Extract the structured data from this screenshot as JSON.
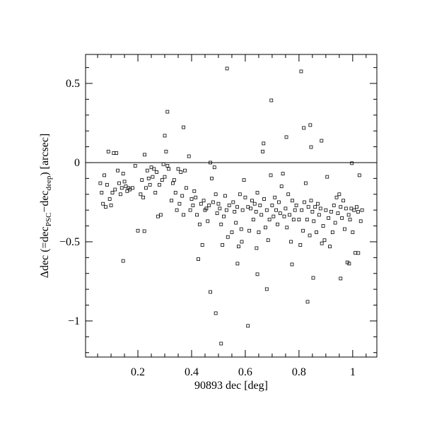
{
  "chart_data": {
    "type": "scatter",
    "xlabel": "90893 dec [deg]",
    "ylabel_parts": [
      "Δdec (=dec",
      "PSC",
      "−dec",
      "deep",
      ") [arcsec]"
    ],
    "xlim": [
      0.005,
      1.09
    ],
    "ylim": [
      -1.228,
      0.683
    ],
    "xticks": [
      0.2,
      0.4,
      0.6,
      0.8,
      1
    ],
    "yticks": [
      {
        "value": -1,
        "label": "−1"
      },
      {
        "value": -0.5,
        "label": "−0.5"
      },
      0,
      0.5
    ],
    "xticks_minor": [
      0.05,
      0.1,
      0.15,
      0.25,
      0.3,
      0.35,
      0.45,
      0.5,
      0.55,
      0.65,
      0.7,
      0.75,
      0.85,
      0.9,
      0.95,
      1.05
    ],
    "yticks_minor": [
      -1.2,
      -1.1,
      -0.9,
      -0.8,
      -0.7,
      -0.6,
      -0.4,
      -0.3,
      -0.2,
      -0.1,
      0.1,
      0.2,
      0.3,
      0.4,
      0.6
    ],
    "hline": 0,
    "color": "#000000",
    "x": [
      0.06,
      0.065,
      0.07,
      0.075,
      0.08,
      0.085,
      0.09,
      0.095,
      0.1,
      0.105,
      0.11,
      0.115,
      0.12,
      0.125,
      0.13,
      0.135,
      0.14,
      0.145,
      0.15,
      0.155,
      0.16,
      0.165,
      0.17,
      0.18,
      0.19,
      0.2,
      0.21,
      0.215,
      0.22,
      0.225,
      0.23,
      0.235,
      0.24,
      0.245,
      0.25,
      0.255,
      0.26,
      0.265,
      0.27,
      0.275,
      0.28,
      0.285,
      0.29,
      0.295,
      0.3,
      0.305,
      0.31,
      0.315,
      0.325,
      0.33,
      0.335,
      0.34,
      0.345,
      0.35,
      0.355,
      0.36,
      0.365,
      0.37,
      0.375,
      0.38,
      0.39,
      0.395,
      0.4,
      0.405,
      0.41,
      0.415,
      0.42,
      0.425,
      0.43,
      0.435,
      0.44,
      0.445,
      0.45,
      0.455,
      0.46,
      0.465,
      0.47,
      0.475,
      0.48,
      0.485,
      0.49,
      0.495,
      0.5,
      0.505,
      0.51,
      0.515,
      0.52,
      0.525,
      0.53,
      0.535,
      0.54,
      0.55,
      0.555,
      0.56,
      0.565,
      0.57,
      0.575,
      0.58,
      0.585,
      0.59,
      0.595,
      0.6,
      0.61,
      0.615,
      0.62,
      0.625,
      0.63,
      0.635,
      0.64,
      0.645,
      0.65,
      0.655,
      0.66,
      0.665,
      0.67,
      0.675,
      0.68,
      0.685,
      0.69,
      0.695,
      0.7,
      0.705,
      0.71,
      0.715,
      0.72,
      0.725,
      0.73,
      0.735,
      0.74,
      0.745,
      0.75,
      0.755,
      0.76,
      0.765,
      0.77,
      0.775,
      0.78,
      0.785,
      0.79,
      0.8,
      0.805,
      0.81,
      0.815,
      0.82,
      0.825,
      0.83,
      0.835,
      0.84,
      0.845,
      0.85,
      0.855,
      0.86,
      0.865,
      0.87,
      0.875,
      0.88,
      0.885,
      0.89,
      0.895,
      0.9,
      0.905,
      0.91,
      0.915,
      0.92,
      0.925,
      0.93,
      0.935,
      0.94,
      0.945,
      0.95,
      0.955,
      0.96,
      0.965,
      0.97,
      0.975,
      0.98,
      0.985,
      0.99,
      0.995,
      1.0,
      1.005,
      1.01,
      1.015,
      1.02,
      1.025,
      1.03,
      1.035,
      0.532,
      0.808,
      0.31,
      0.3,
      0.37,
      0.697,
      0.668,
      0.753,
      0.884,
      0.845,
      0.818,
      0.842,
      0.997,
      0.145,
      0.224,
      0.47,
      0.49,
      0.51,
      0.61,
      0.645,
      0.68,
      0.832,
      0.853,
      0.955,
      0.987,
      0.774,
      0.571,
      0.642,
      0.587,
      1.021
    ],
    "values": [
      -0.13,
      -0.19,
      -0.26,
      -0.08,
      -0.28,
      -0.14,
      0.07,
      -0.23,
      -0.27,
      -0.19,
      0.06,
      -0.17,
      0.06,
      -0.05,
      -0.13,
      -0.2,
      -0.16,
      -0.07,
      -0.12,
      -0.15,
      -0.18,
      -0.16,
      -0.17,
      -0.16,
      -0.02,
      -0.43,
      -0.2,
      -0.11,
      -0.22,
      0.05,
      -0.16,
      -0.05,
      -0.1,
      -0.14,
      -0.03,
      -0.09,
      -0.04,
      -0.19,
      -0.06,
      -0.34,
      -0.14,
      -0.33,
      -0.11,
      -0.01,
      -0.09,
      0.07,
      -0.02,
      -0.04,
      -0.24,
      -0.13,
      -0.11,
      -0.19,
      -0.3,
      -0.04,
      -0.26,
      -0.06,
      -0.21,
      -0.33,
      -0.05,
      -0.16,
      0.04,
      -0.3,
      -0.23,
      -0.27,
      -0.18,
      -0.22,
      -0.33,
      -0.61,
      -0.39,
      -0.26,
      -0.52,
      -0.24,
      -0.3,
      -0.29,
      -0.37,
      -0.27,
      0.0,
      -0.1,
      -0.25,
      -0.03,
      -0.2,
      -0.32,
      -0.26,
      -0.29,
      -0.39,
      -0.52,
      -0.34,
      -0.21,
      -0.3,
      -0.47,
      -0.27,
      -0.44,
      -0.25,
      -0.31,
      -0.38,
      -0.28,
      -0.53,
      -0.2,
      -0.42,
      -0.3,
      -0.11,
      -0.22,
      -0.28,
      -0.43,
      -0.29,
      -0.24,
      -0.36,
      -0.26,
      -0.31,
      -0.19,
      -0.44,
      -0.27,
      -0.33,
      0.07,
      -0.23,
      -0.41,
      -0.3,
      -0.49,
      -0.36,
      -0.08,
      -0.27,
      -0.34,
      -0.22,
      -0.3,
      -0.39,
      -0.25,
      -0.32,
      -0.15,
      -0.07,
      -0.34,
      -0.29,
      -0.41,
      -0.2,
      -0.33,
      -0.5,
      -0.24,
      -0.36,
      -0.3,
      -0.27,
      -0.36,
      -0.52,
      -0.3,
      -0.43,
      -0.25,
      -0.13,
      -0.36,
      -0.28,
      -0.46,
      -0.24,
      -0.31,
      -0.37,
      -0.28,
      -0.44,
      -0.26,
      -0.33,
      -0.29,
      -0.51,
      -0.4,
      -0.49,
      -0.3,
      -0.09,
      -0.35,
      -0.53,
      -0.31,
      -0.44,
      -0.27,
      -0.38,
      -0.22,
      -0.32,
      -0.2,
      -0.28,
      -0.35,
      -0.24,
      -0.42,
      -0.29,
      -0.63,
      -0.33,
      -0.36,
      -0.29,
      -0.44,
      -0.3,
      -0.57,
      -0.28,
      -0.31,
      -0.08,
      -0.37,
      -0.3,
      0.594,
      0.576,
      0.321,
      0.17,
      0.223,
      0.393,
      0.121,
      0.161,
      0.138,
      0.098,
      0.219,
      0.237,
      -0.004,
      -0.621,
      -0.433,
      -0.817,
      -0.951,
      -1.143,
      -1.031,
      -0.705,
      -0.799,
      -0.879,
      -0.728,
      -0.732,
      -0.638,
      -0.643,
      -0.638,
      -0.54,
      -0.5,
      -0.571
    ]
  }
}
